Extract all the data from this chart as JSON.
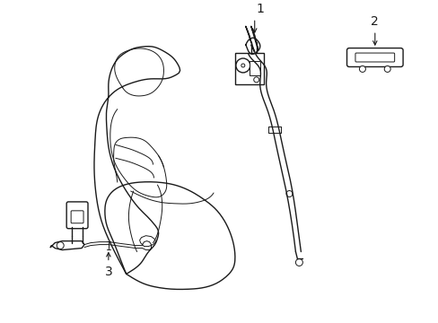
{
  "bg_color": "#ffffff",
  "line_color": "#1a1a1a",
  "lw": 1.0,
  "tlw": 0.7,
  "label_1": "1",
  "label_2": "2",
  "label_3": "3",
  "label_fontsize": 10,
  "figsize": [
    4.89,
    3.6
  ],
  "dpi": 100
}
